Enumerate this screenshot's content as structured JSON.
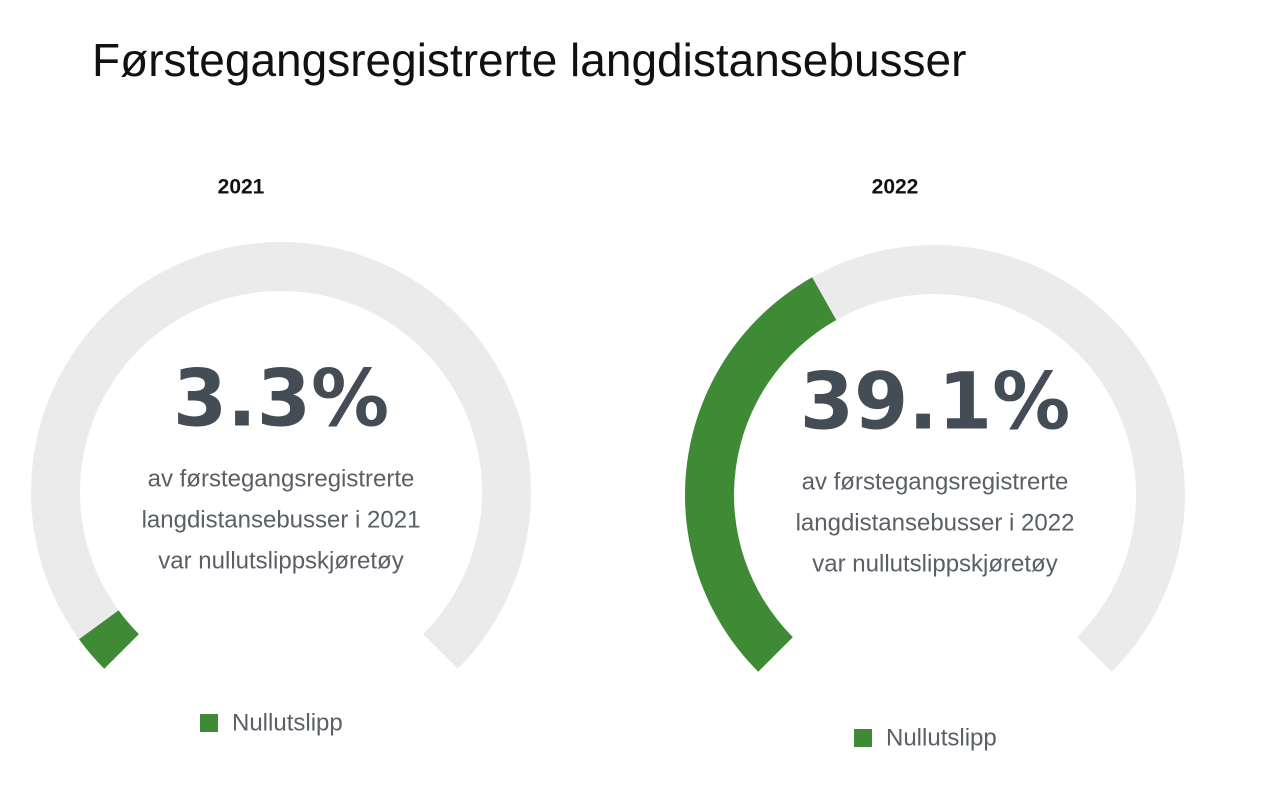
{
  "title": "Førstegangsregistrerte langdistansebusser",
  "chart_data": [
    {
      "type": "gauge",
      "title": "2021",
      "series": [
        {
          "name": "Nullutslipp",
          "color": "#3f8a35",
          "values": [
            3.3
          ],
          "value_labels": [
            "3.3%"
          ]
        }
      ],
      "ylim": [
        0,
        100
      ],
      "annotation": [
        "av førstegangsregistrerte",
        "langdistansebusser i 2021",
        "var nullutslippskjøretøy"
      ]
    },
    {
      "type": "gauge",
      "title": "2022",
      "series": [
        {
          "name": "Nullutslipp",
          "color": "#3f8a35",
          "values": [
            39.1
          ],
          "value_labels": [
            "39.1%"
          ]
        }
      ],
      "ylim": [
        0,
        100
      ],
      "annotation": [
        "av førstegangsregistrerte",
        "langdistansebusser i 2022",
        "var nullutslippskjøretøy"
      ]
    }
  ]
}
